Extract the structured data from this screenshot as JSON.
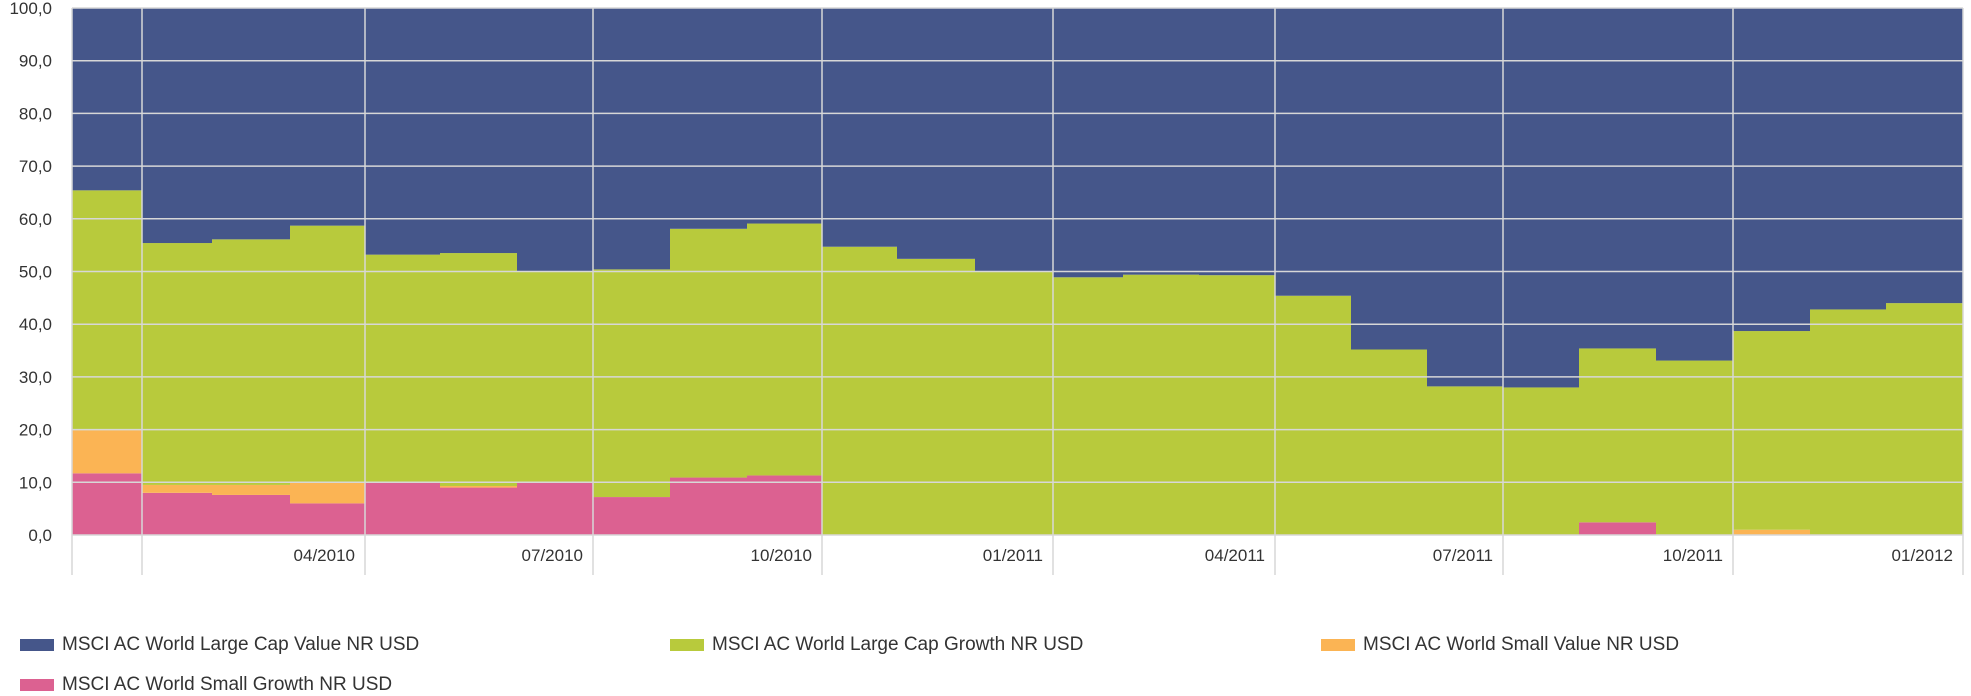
{
  "chart_data": {
    "type": "area",
    "stacked": true,
    "step": true,
    "x": [
      "2010-01",
      "2010-02",
      "2010-03",
      "2010-04",
      "2010-05",
      "2010-06",
      "2010-07",
      "2010-08",
      "2010-09",
      "2010-10",
      "2010-11",
      "2010-12",
      "2011-01",
      "2011-02",
      "2011-03",
      "2011-04",
      "2011-05",
      "2011-06",
      "2011-07",
      "2011-08",
      "2011-09",
      "2011-10",
      "2011-11",
      "2011-12",
      "2012-01"
    ],
    "x_tick_labels": [
      "04/2010",
      "07/2010",
      "10/2010",
      "01/2011",
      "04/2011",
      "07/2011",
      "10/2011",
      "01/2012"
    ],
    "y_tick_labels": [
      "0,0",
      "10,0",
      "20,0",
      "30,0",
      "40,0",
      "50,0",
      "60,0",
      "70,0",
      "80,0",
      "90,0",
      "100,0"
    ],
    "ylim": [
      0,
      100
    ],
    "grid": true,
    "legend_position": "bottom",
    "series": [
      {
        "name": "MSCI AC World Large Cap Value NR USD",
        "color": "#45568a",
        "values": [
          34.6,
          44.6,
          43.9,
          41.3,
          46.8,
          46.5,
          50.1,
          49.6,
          41.9,
          40.9,
          45.3,
          47.6,
          50.1,
          51.1,
          50.6,
          50.7,
          54.6,
          64.8,
          71.8,
          72.0,
          64.6,
          66.9,
          61.3,
          57.2,
          56.0
        ]
      },
      {
        "name": "MSCI AC World Large Cap Growth NR USD",
        "color": "#b8ca3c",
        "values": [
          45.5,
          45.9,
          46.6,
          48.6,
          43.2,
          44.2,
          40.0,
          43.2,
          47.2,
          47.8,
          54.7,
          52.4,
          49.9,
          48.9,
          49.4,
          49.3,
          45.4,
          35.2,
          28.2,
          28.0,
          33.0,
          33.1,
          37.7,
          42.8,
          44.0
        ]
      },
      {
        "name": "MSCI AC World Small Value NR USD",
        "color": "#fbb454",
        "values": [
          8.2,
          1.5,
          1.9,
          4.1,
          0,
          0.3,
          0,
          0,
          0,
          0,
          0,
          0,
          0,
          0,
          0,
          0,
          0,
          0,
          0,
          0,
          0,
          0,
          1.0,
          0,
          0
        ]
      },
      {
        "name": "MSCI AC World Small Growth NR USD",
        "color": "#dc6191",
        "values": [
          11.7,
          8.0,
          7.6,
          6.0,
          10.0,
          9.0,
          9.9,
          7.2,
          10.9,
          11.3,
          0,
          0,
          0,
          0,
          0,
          0,
          0,
          0,
          0,
          0,
          2.4,
          0,
          0,
          0,
          0
        ]
      }
    ]
  }
}
